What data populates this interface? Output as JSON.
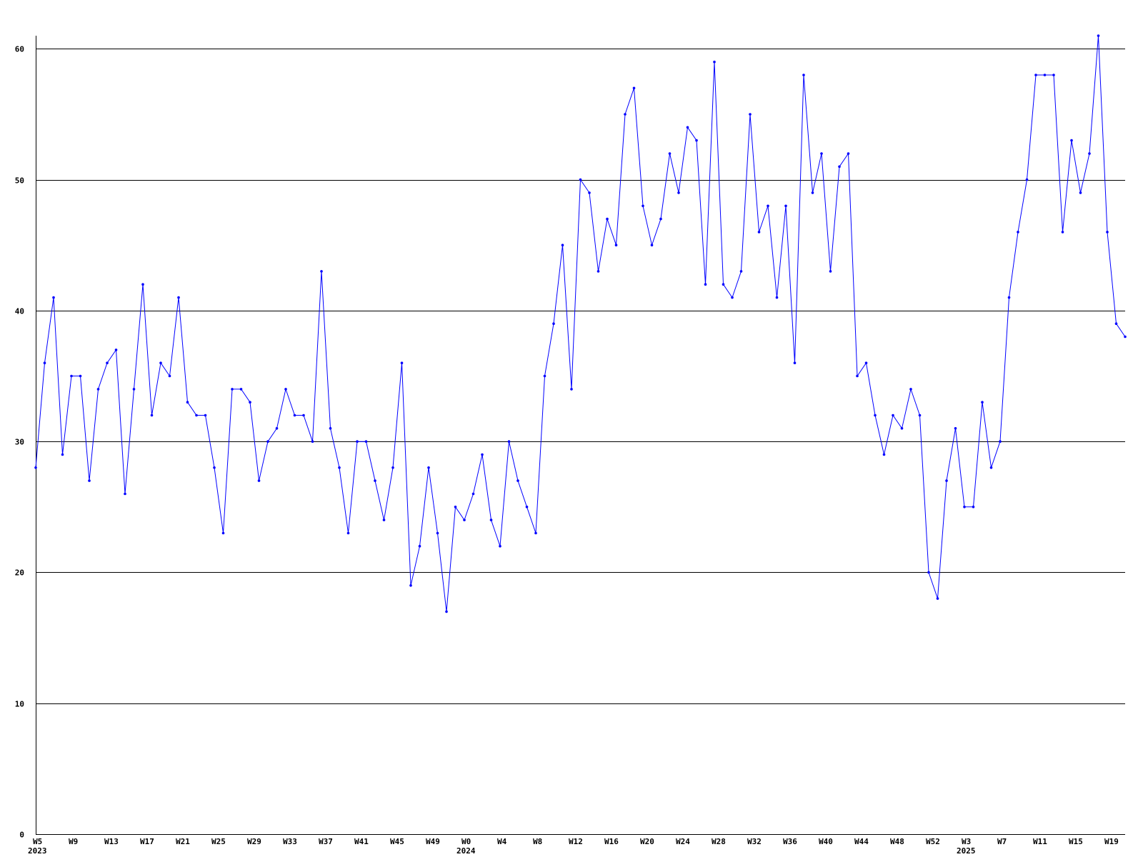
{
  "chart_data": {
    "type": "line",
    "title": "",
    "xlabel": "",
    "ylabel": "",
    "ylim": [
      0,
      61
    ],
    "yticks": [
      0,
      10,
      20,
      30,
      40,
      50,
      60
    ],
    "grid": true,
    "legend": "none",
    "x_tick_labels": [
      {
        "week_index": 0,
        "label": "W5",
        "year": "2023"
      },
      {
        "week_index": 4,
        "label": "W9"
      },
      {
        "week_index": 8,
        "label": "W13"
      },
      {
        "week_index": 12,
        "label": "W17"
      },
      {
        "week_index": 16,
        "label": "W21"
      },
      {
        "week_index": 20,
        "label": "W25"
      },
      {
        "week_index": 24,
        "label": "W29"
      },
      {
        "week_index": 28,
        "label": "W33"
      },
      {
        "week_index": 32,
        "label": "W37"
      },
      {
        "week_index": 36,
        "label": "W41"
      },
      {
        "week_index": 40,
        "label": "W45"
      },
      {
        "week_index": 44,
        "label": "W49"
      },
      {
        "week_index": 48,
        "label": "W0",
        "year": "2024"
      },
      {
        "week_index": 52,
        "label": "W4"
      },
      {
        "week_index": 56,
        "label": "W8"
      },
      {
        "week_index": 60,
        "label": "W12"
      },
      {
        "week_index": 64,
        "label": "W16"
      },
      {
        "week_index": 68,
        "label": "W20"
      },
      {
        "week_index": 72,
        "label": "W24"
      },
      {
        "week_index": 76,
        "label": "W28"
      },
      {
        "week_index": 80,
        "label": "W32"
      },
      {
        "week_index": 84,
        "label": "W36"
      },
      {
        "week_index": 88,
        "label": "W40"
      },
      {
        "week_index": 92,
        "label": "W44"
      },
      {
        "week_index": 96,
        "label": "W48"
      },
      {
        "week_index": 100,
        "label": "W52"
      },
      {
        "week_index": 104,
        "label": "W3",
        "year": "2025"
      },
      {
        "week_index": 108,
        "label": "W7"
      },
      {
        "week_index": 112,
        "label": "W11"
      },
      {
        "week_index": 116,
        "label": "W15"
      },
      {
        "week_index": 120,
        "label": "W19"
      }
    ],
    "series": [
      {
        "color": "#0000ff",
        "values": [
          28,
          36,
          41,
          29,
          35,
          35,
          27,
          34,
          36,
          37,
          26,
          34,
          42,
          32,
          36,
          35,
          41,
          33,
          32,
          32,
          28,
          23,
          34,
          34,
          33,
          27,
          30,
          31,
          34,
          32,
          32,
          30,
          43,
          31,
          28,
          23,
          30,
          30,
          27,
          24,
          28,
          36,
          19,
          22,
          28,
          23,
          17,
          25,
          24,
          26,
          29,
          24,
          22,
          30,
          27,
          25,
          23,
          35,
          39,
          45,
          34,
          50,
          49,
          43,
          47,
          45,
          55,
          57,
          48,
          45,
          47,
          52,
          49,
          54,
          53,
          42,
          59,
          42,
          41,
          43,
          55,
          46,
          48,
          41,
          48,
          36,
          58,
          49,
          52,
          43,
          51,
          52,
          35,
          36,
          32,
          29,
          32,
          31,
          34,
          32,
          20,
          18,
          27,
          31,
          25,
          25,
          33,
          28,
          30,
          41,
          46,
          50,
          58,
          58,
          58,
          46,
          53,
          49,
          52,
          61,
          46,
          39,
          38
        ]
      }
    ]
  }
}
